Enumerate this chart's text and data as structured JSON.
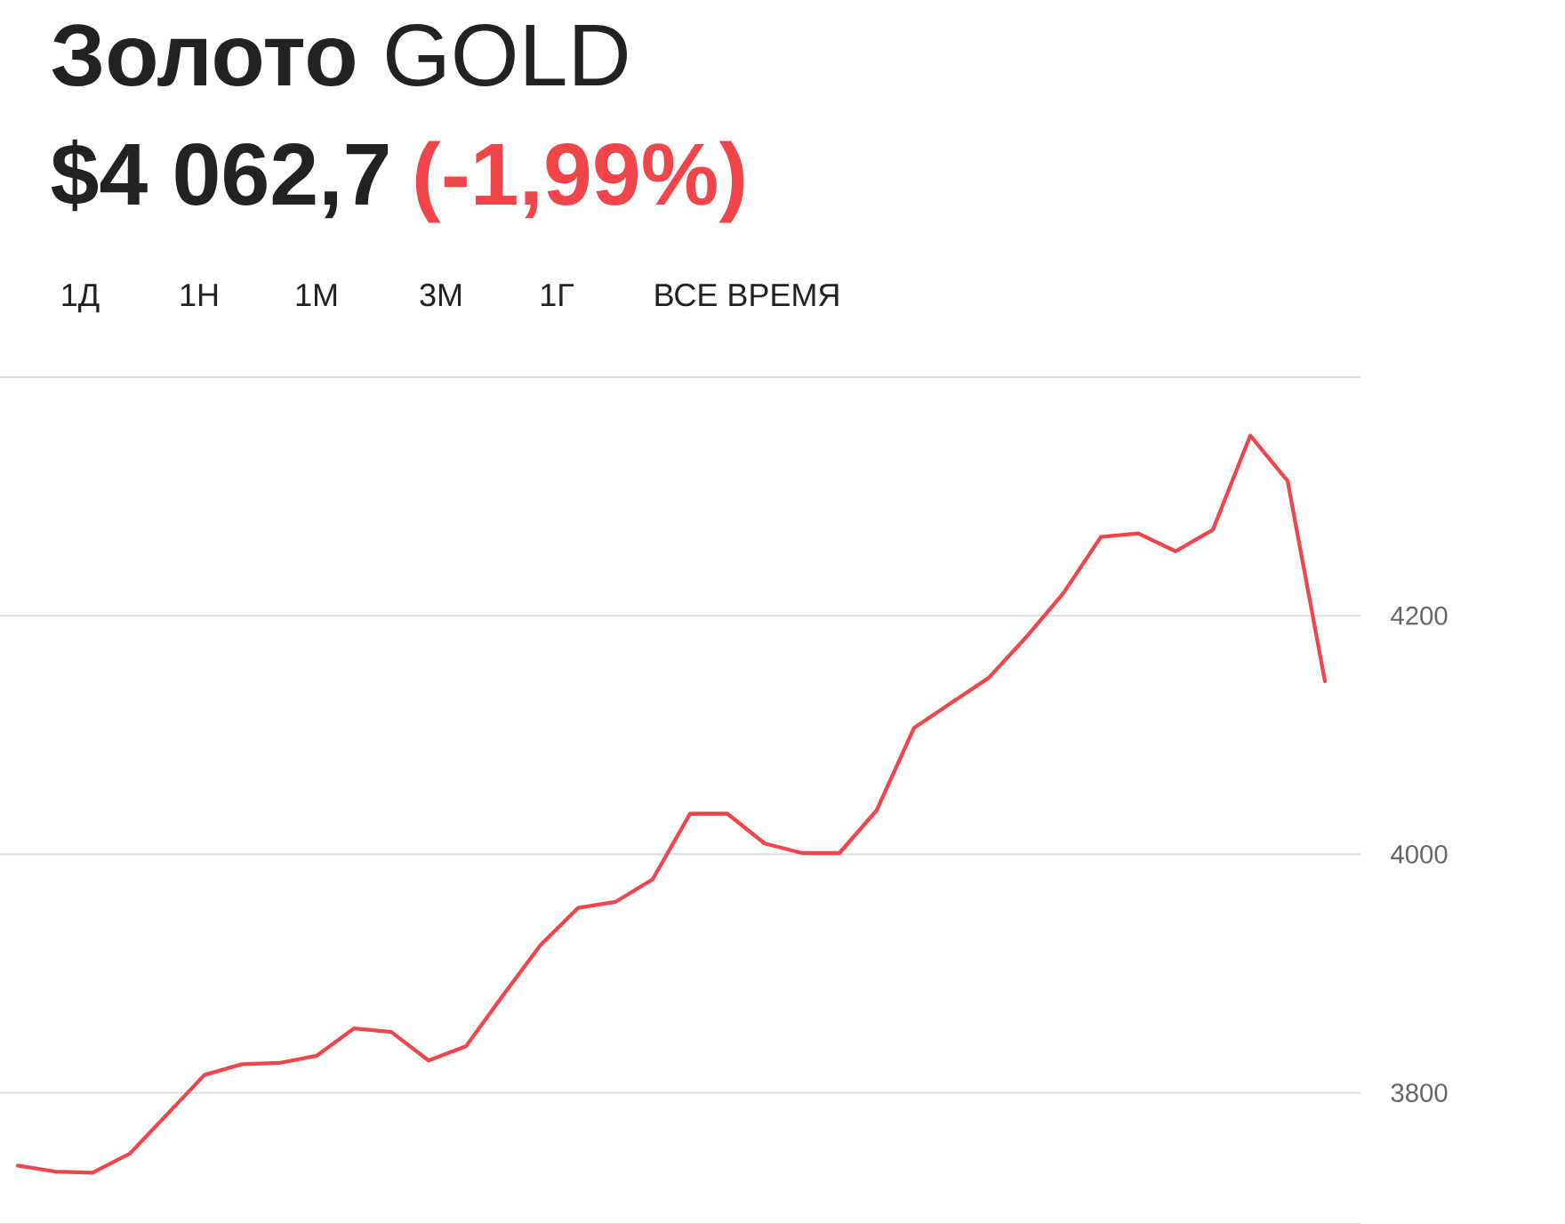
{
  "chart_data": {
    "type": "line",
    "title": "**Золото** GOLD",
    "subtitle": "$4 062,7",
    "annotations": [
      "(-1,99%)",
      "1Д",
      "1Н",
      "1М",
      "3М",
      "1Г",
      "ВСЕ ВРЕМЯ"
    ],
    "categories": [
      null,
      null,
      null,
      null,
      null,
      null,
      null,
      null,
      null,
      null,
      null,
      null,
      null,
      null,
      null,
      null,
      null,
      null,
      null,
      null,
      null,
      null,
      null,
      null,
      null,
      null,
      null,
      null,
      null,
      null,
      null,
      null,
      null,
      null,
      null,
      null
    ],
    "series": [
      {
        "color": "#f0454a",
        "values": [
          3739,
          3734,
          3733,
          3749,
          3782,
          3815,
          3824,
          3825,
          3831,
          3854,
          3851,
          3827,
          3839,
          3882,
          3924,
          3955,
          3960,
          3979,
          4034,
          4034,
          4009,
          4001,
          4001,
          4037,
          4106,
          4127,
          4148,
          4182,
          4219,
          4266,
          4269,
          4254,
          4272,
          4351,
          4313,
          4145
        ]
      }
    ],
    "ylim": [
      3690,
      4400
    ],
    "yticks": [
      3800,
      4000,
      4200
    ],
    "grid": "y"
  }
}
